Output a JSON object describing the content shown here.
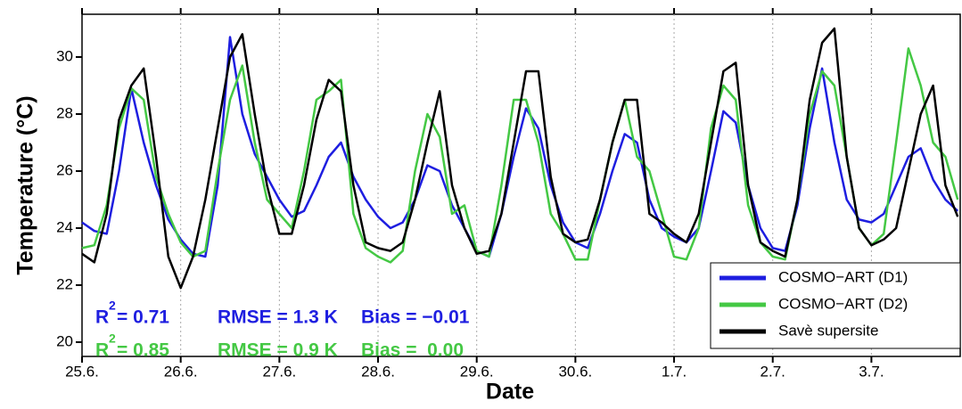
{
  "chart_data": {
    "type": "line",
    "x_label": "Date",
    "y_label": "Temperature (°C)",
    "xlim": [
      0,
      8.9
    ],
    "ylim": [
      19.5,
      31.5
    ],
    "xticks": [
      {
        "value": 0,
        "label": "25.6."
      },
      {
        "value": 1,
        "label": "26.6."
      },
      {
        "value": 2,
        "label": "27.6."
      },
      {
        "value": 3,
        "label": "28.6."
      },
      {
        "value": 4,
        "label": "29.6."
      },
      {
        "value": 5,
        "label": "30.6."
      },
      {
        "value": 6,
        "label": "1.7."
      },
      {
        "value": 7,
        "label": "2.7."
      },
      {
        "value": 8,
        "label": "3.7."
      }
    ],
    "yticks": [
      20,
      22,
      24,
      26,
      28,
      30
    ],
    "grid": true,
    "legend": "lower right",
    "x": [
      0,
      0.125,
      0.25,
      0.375,
      0.5,
      0.625,
      0.75,
      0.875,
      1,
      1.125,
      1.25,
      1.375,
      1.5,
      1.625,
      1.75,
      1.875,
      2,
      2.125,
      2.25,
      2.375,
      2.5,
      2.625,
      2.75,
      2.875,
      3,
      3.125,
      3.25,
      3.375,
      3.5,
      3.625,
      3.75,
      3.875,
      4,
      4.125,
      4.25,
      4.375,
      4.5,
      4.625,
      4.75,
      4.875,
      5,
      5.125,
      5.25,
      5.375,
      5.5,
      5.625,
      5.75,
      5.875,
      6,
      6.125,
      6.25,
      6.375,
      6.5,
      6.625,
      6.75,
      6.875,
      7,
      7.125,
      7.25,
      7.375,
      7.5,
      7.625,
      7.75,
      7.875,
      8,
      8.125,
      8.25,
      8.375,
      8.5,
      8.625,
      8.75,
      8.875
    ],
    "series": [
      {
        "name": "COSMO−ART (D1)",
        "color": "#1e1ee0",
        "values": [
          24.2,
          23.9,
          23.8,
          26.0,
          28.9,
          27.0,
          25.5,
          24.3,
          23.6,
          23.1,
          23.0,
          25.5,
          30.7,
          28.0,
          26.6,
          25.8,
          25.0,
          24.4,
          24.6,
          25.5,
          26.5,
          27.0,
          25.8,
          25.0,
          24.4,
          24.0,
          24.2,
          25.0,
          26.2,
          26.0,
          24.8,
          24.0,
          23.2,
          23.0,
          24.5,
          26.5,
          28.2,
          27.5,
          25.5,
          24.2,
          23.5,
          23.3,
          24.5,
          26.0,
          27.3,
          27.0,
          25.0,
          24.0,
          23.7,
          23.5,
          24.0,
          26.0,
          28.1,
          27.7,
          25.5,
          24.0,
          23.3,
          23.2,
          24.8,
          27.5,
          29.6,
          27.0,
          25.0,
          24.3,
          24.2,
          24.5,
          25.5,
          26.5,
          26.8,
          25.7,
          25.0,
          24.6
        ]
      },
      {
        "name": "COSMO−ART (D2)",
        "color": "#44c844",
        "values": [
          23.3,
          23.4,
          24.8,
          27.5,
          28.9,
          28.5,
          25.8,
          24.5,
          23.5,
          23.0,
          23.2,
          26.0,
          28.5,
          29.7,
          27.0,
          25.0,
          24.5,
          24.0,
          26.0,
          28.5,
          28.8,
          29.2,
          24.5,
          23.3,
          23.0,
          22.8,
          23.2,
          26.0,
          28.0,
          27.2,
          24.5,
          24.8,
          23.2,
          23.0,
          25.5,
          28.5,
          28.5,
          27.0,
          24.5,
          23.8,
          22.9,
          22.9,
          25.0,
          27.0,
          28.5,
          26.5,
          26.0,
          24.5,
          23.0,
          22.9,
          24.0,
          27.5,
          29.0,
          28.5,
          24.8,
          23.5,
          23.0,
          22.9,
          25.0,
          28.0,
          29.5,
          29.0,
          26.5,
          24.0,
          23.4,
          23.8,
          27.0,
          30.3,
          29.0,
          27.0,
          26.5,
          25.0
        ]
      },
      {
        "name": "Savè supersite",
        "color": "#000000",
        "values": [
          23.1,
          22.8,
          24.5,
          27.8,
          29.0,
          29.6,
          26.5,
          23.0,
          21.9,
          23.0,
          25.0,
          27.5,
          30.0,
          30.8,
          28.0,
          25.5,
          23.8,
          23.8,
          25.5,
          27.8,
          29.2,
          28.8,
          25.5,
          23.5,
          23.3,
          23.2,
          23.5,
          25.0,
          27.0,
          28.8,
          25.5,
          24.0,
          23.1,
          23.2,
          24.5,
          27.0,
          29.5,
          29.5,
          25.8,
          23.8,
          23.5,
          23.6,
          25.0,
          27.0,
          28.5,
          28.5,
          24.5,
          24.2,
          23.8,
          23.5,
          24.5,
          27.0,
          29.5,
          29.8,
          25.5,
          23.5,
          23.2,
          23.0,
          25.0,
          28.5,
          30.5,
          31.0,
          26.5,
          24.0,
          23.4,
          23.6,
          24.0,
          26.0,
          28.0,
          29.0,
          25.5,
          24.4
        ]
      }
    ],
    "stats": [
      {
        "color": "#1e1ee0",
        "r2_symbol": "R",
        "r2_sup": "2",
        "r2": "= 0.71",
        "rmse": "RMSE = 1.3 K",
        "bias": "Bias = −0.01"
      },
      {
        "color": "#44c844",
        "r2_symbol": "R",
        "r2_sup": "2",
        "r2": "= 0.85",
        "rmse": "RMSE = 0.9 K",
        "bias": "Bias =  0.00"
      }
    ]
  }
}
